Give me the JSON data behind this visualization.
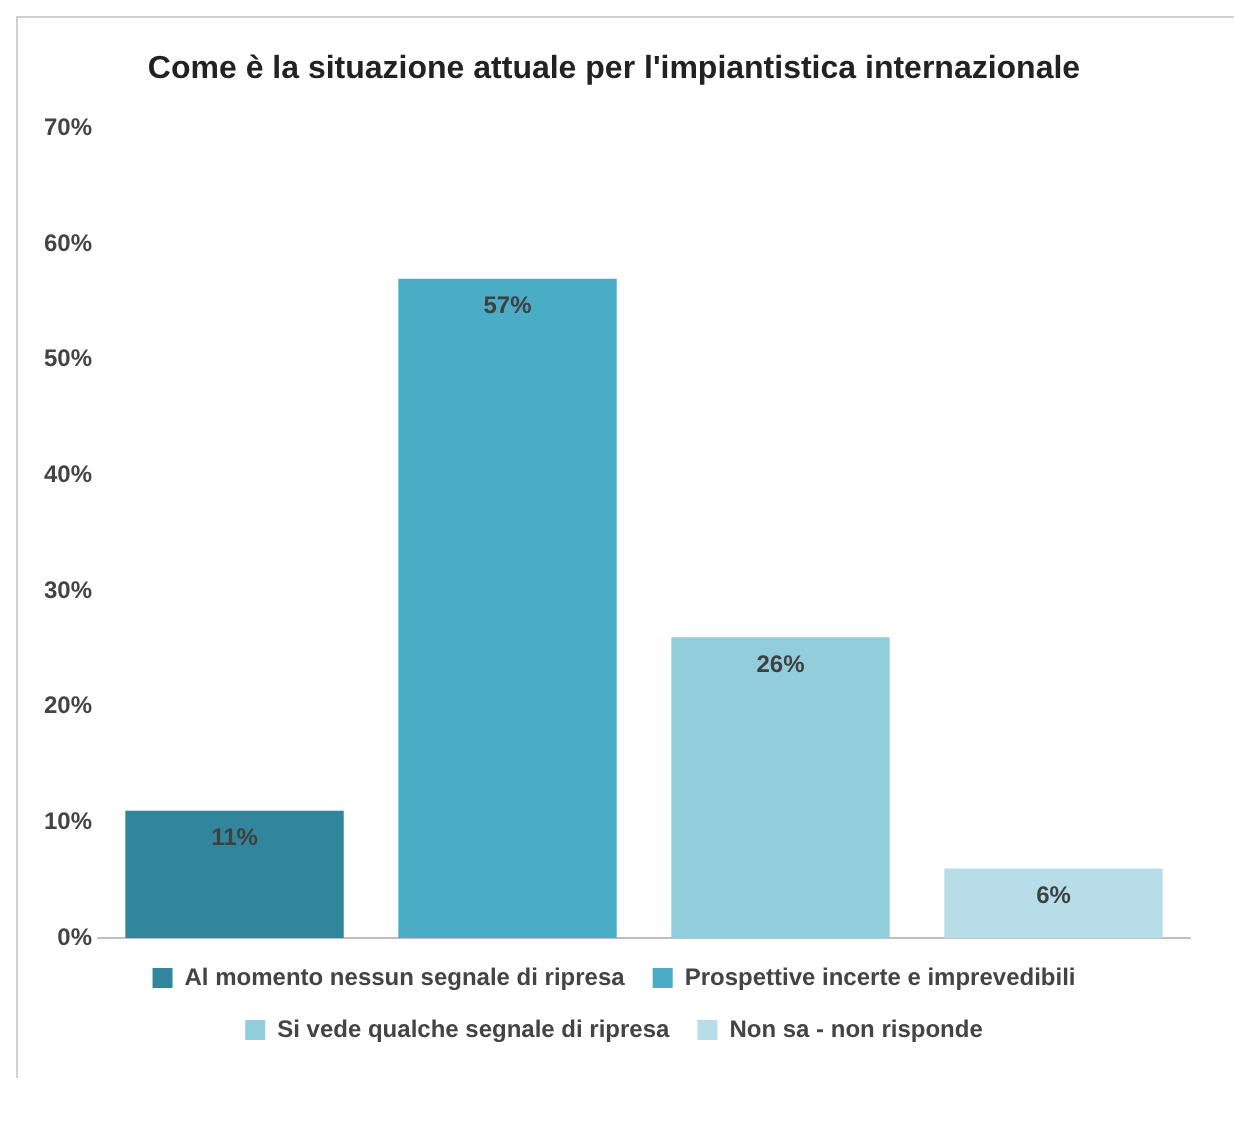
{
  "chart_data": {
    "type": "bar",
    "title": "Come è la situazione attuale per l'impiantistica internazionale",
    "categories": [
      null,
      null,
      null,
      null
    ],
    "series": [
      {
        "name": "Al momento nessun segnale di ripresa",
        "color": "#31859c",
        "values": [
          11,
          null,
          null,
          null
        ],
        "value_labels": [
          "11%",
          null,
          null,
          null
        ]
      },
      {
        "name": "Prospettive incerte e imprevedibili",
        "color": "#4bacc6",
        "values": [
          null,
          57,
          null,
          null
        ],
        "value_labels": [
          null,
          "57%",
          null,
          null
        ]
      },
      {
        "name": "Si vede qualche segnale di ripresa",
        "color": "#92cddc",
        "values": [
          null,
          null,
          26,
          null
        ],
        "value_labels": [
          null,
          null,
          "26%",
          null
        ]
      },
      {
        "name": "Non sa - non risponde",
        "color": "#b7dde8",
        "values": [
          null,
          null,
          null,
          6
        ],
        "value_labels": [
          null,
          null,
          null,
          "6%"
        ]
      }
    ],
    "ylim": [
      0,
      70
    ],
    "yticks": [
      {
        "value": 0,
        "label": "0%"
      },
      {
        "value": 10,
        "label": "10%"
      },
      {
        "value": 20,
        "label": "20%"
      },
      {
        "value": 30,
        "label": "30%"
      },
      {
        "value": 40,
        "label": "40%"
      },
      {
        "value": 50,
        "label": "50%"
      },
      {
        "value": 60,
        "label": "60%"
      },
      {
        "value": 70,
        "label": "70%"
      }
    ],
    "tick_labels": "y",
    "grid": false,
    "legend": "bottom"
  }
}
